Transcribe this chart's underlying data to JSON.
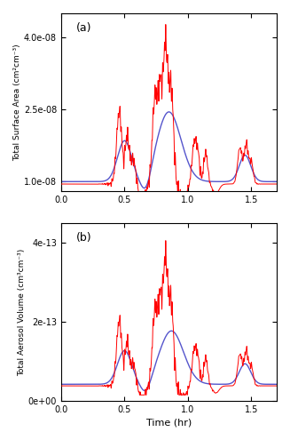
{
  "title_a": "(a)",
  "title_b": "(b)",
  "xlabel": "Time (hr)",
  "ylabel_a": "Total Surface Area (cm²cm⁻³)",
  "ylabel_b": "Total Aerosol Volume (cm³cm⁻³)",
  "xlim": [
    0.0,
    1.7
  ],
  "xticks": [
    0.0,
    0.5,
    1.0,
    1.5
  ],
  "ylim_a": [
    8e-09,
    4.5e-08
  ],
  "yticks_a": [
    1e-08,
    2.5e-08,
    4e-08
  ],
  "ytick_labels_a": [
    "1.0e-08",
    "2.5e-08",
    "4.0e-08"
  ],
  "ylim_b": [
    0.0,
    4.5e-13
  ],
  "yticks_b": [
    0.0,
    2e-13,
    4e-13
  ],
  "ytick_labels_b": [
    "0e+00",
    "2e-13",
    "4e-13"
  ],
  "red_color": "#FF0000",
  "blue_color": "#5555CC",
  "linewidth_red": 0.7,
  "linewidth_blue": 1.0,
  "background_color": "#FFFFFF",
  "figsize": [
    3.27,
    4.95
  ],
  "dpi": 100
}
